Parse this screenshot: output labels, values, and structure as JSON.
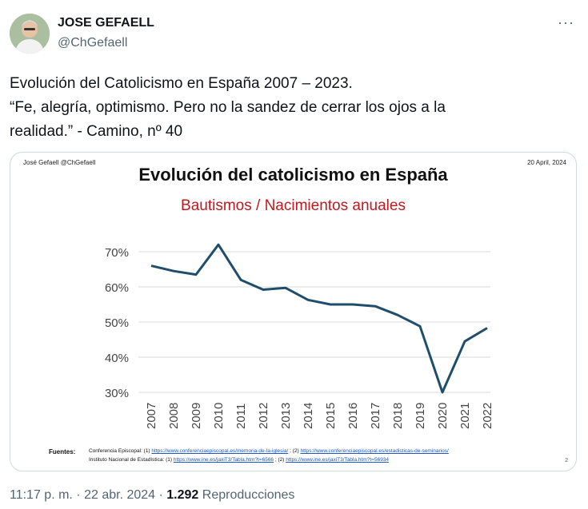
{
  "author": {
    "name": "JOSE GEFAELL",
    "handle": "@ChGefaell"
  },
  "tweet": {
    "lines": [
      "Evolución del Catolicismo en España 2007 – 2023.",
      "“Fe, alegría, optimismo. Pero no la sandez de cerrar los ojos a la",
      "realidad.” - Camino, nº 40"
    ]
  },
  "card": {
    "author_line": "José Gefaell  @ChGefaell",
    "date": "20 April, 2024",
    "page_number": "2",
    "sources_label": "Fuentes:",
    "sources": [
      {
        "prefix": "Conferencia Episcopal: (1) ",
        "link1": "https://www.conferenciaepiscopal.es/memoria-de-la-iglesia/",
        "middle": " ; (2)  ",
        "link2": "https://www.conferenciaepiscopal.es/estadisticas-de-seminarios/"
      },
      {
        "prefix": "Instituto Nacional de Estadística: (1) ",
        "link1": "https://www.ine.es/jaxiT3/Tabla.htm?t=6566",
        "middle": " ; (2) ",
        "link2": "https://www.ine.es/jaxiT3/Tabla.htm?t=56934"
      }
    ]
  },
  "chart_data": {
    "type": "line",
    "title": "Evolución del catolicismo en España",
    "subtitle": "Bautismos / Nacimientos anuales",
    "categories": [
      "2007",
      "2008",
      "2009",
      "2010",
      "2011",
      "2012",
      "2013",
      "2014",
      "2015",
      "2016",
      "2017",
      "2018",
      "2019",
      "2020",
      "2021",
      "2022"
    ],
    "series": [
      {
        "name": "Bautismos / Nacimientos anuales",
        "values": [
          66,
          64.5,
          63.5,
          72,
          62,
          59.2,
          59.7,
          56.3,
          55,
          55,
          54.5,
          52,
          48.8,
          30,
          44.5,
          48.3
        ]
      }
    ],
    "yticks": [
      "30%",
      "40%",
      "50%",
      "60%",
      "70%"
    ],
    "ylim": [
      30,
      70
    ],
    "grid": true,
    "line_color": "#1f4e6b"
  },
  "meta": {
    "time": "11:17 p. m.",
    "separator": " · ",
    "date": "22 abr. 2024",
    "views_count": "1.292",
    "views_label": "Reproducciones"
  }
}
